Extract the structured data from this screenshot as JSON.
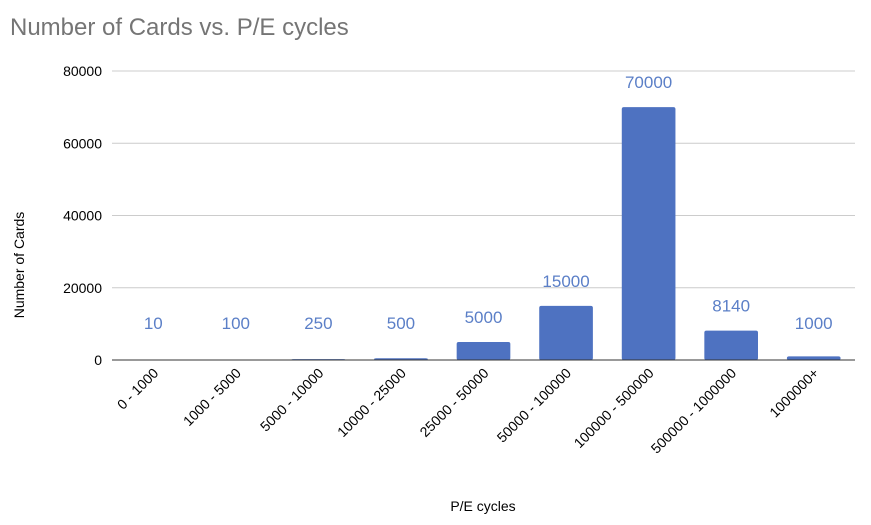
{
  "chart_data": {
    "type": "bar",
    "title": "Number of Cards vs. P/E cycles",
    "xlabel": "P/E cycles",
    "ylabel": "Number of Cards",
    "categories": [
      "0 - 1000",
      "1000 - 5000",
      "5000 - 10000",
      "10000 - 25000",
      "25000 - 50000",
      "50000 - 100000",
      "100000 - 500000",
      "500000 - 1000000",
      "1000000+"
    ],
    "values": [
      10,
      100,
      250,
      500,
      5000,
      15000,
      70000,
      8140,
      1000
    ],
    "data_labels": [
      "10",
      "100",
      "250",
      "500",
      "5000",
      "15000",
      "70000",
      "8140",
      "1000"
    ],
    "ylim": [
      0,
      80000
    ],
    "yticks": [
      0,
      20000,
      40000,
      60000,
      80000
    ],
    "ytick_labels": [
      "0",
      "20000",
      "40000",
      "60000",
      "80000"
    ],
    "grid": true,
    "legend": "none",
    "colors": {
      "bar": "#4e72c1",
      "data_label": "#5b7fc7",
      "gridline": "#cccccc",
      "axis": "#333333",
      "title": "#757575"
    }
  }
}
